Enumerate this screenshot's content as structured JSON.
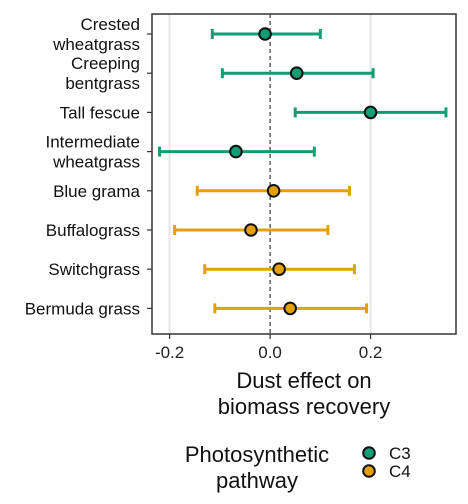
{
  "chart_data": {
    "type": "scatter",
    "title": "",
    "xlabel": [
      "Dust effect on",
      "biomass recovery"
    ],
    "ylabel": "",
    "xlim": [
      -0.235,
      0.37
    ],
    "xticks": [
      -0.2,
      0.0,
      0.2
    ],
    "xtick_labels": [
      "-0.2",
      "0.0",
      "0.2"
    ],
    "reference_line": 0,
    "grid": "vertical major",
    "legend_position": "bottom",
    "colors": {
      "C3": "#119e73",
      "C4": "#e3a007"
    },
    "categories": [
      {
        "label": [
          "Crested",
          "wheatgrass"
        ],
        "pathway": "C3",
        "estimate": -0.01,
        "lower": -0.115,
        "upper": 0.1
      },
      {
        "label": [
          "Creeping",
          "bentgrass"
        ],
        "pathway": "C3",
        "estimate": 0.053,
        "lower": -0.095,
        "upper": 0.205
      },
      {
        "label": [
          "Tall fescue"
        ],
        "pathway": "C3",
        "estimate": 0.2,
        "lower": 0.05,
        "upper": 0.35
      },
      {
        "label": [
          "Intermediate",
          "wheatgrass"
        ],
        "pathway": "C3",
        "estimate": -0.068,
        "lower": -0.22,
        "upper": 0.088
      },
      {
        "label": [
          "Blue grama"
        ],
        "pathway": "C4",
        "estimate": 0.007,
        "lower": -0.145,
        "upper": 0.158
      },
      {
        "label": [
          "Buffalograss"
        ],
        "pathway": "C4",
        "estimate": -0.038,
        "lower": -0.19,
        "upper": 0.115
      },
      {
        "label": [
          "Switchgrass"
        ],
        "pathway": "C4",
        "estimate": 0.018,
        "lower": -0.13,
        "upper": 0.168
      },
      {
        "label": [
          "Bermuda grass"
        ],
        "pathway": "C4",
        "estimate": 0.04,
        "lower": -0.11,
        "upper": 0.192
      }
    ],
    "legend": {
      "title": [
        "Photosynthetic",
        "pathway"
      ],
      "entries": [
        "C3",
        "C4"
      ]
    }
  }
}
